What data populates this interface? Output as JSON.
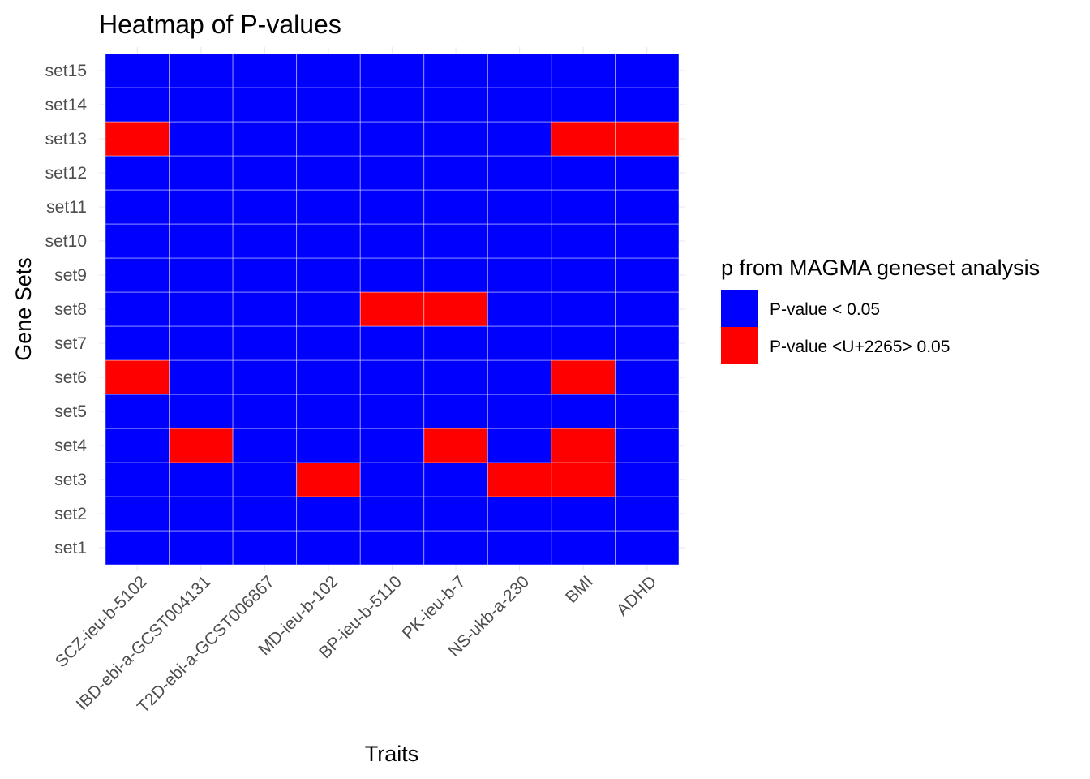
{
  "chart_data": {
    "type": "heatmap",
    "title": "Heatmap of P-values",
    "xlabel": "Traits",
    "ylabel": "Gene Sets",
    "x_categories": [
      "SCZ-ieu-b-5102",
      "IBD-ebi-a-GCST004131",
      "T2D-ebi-a-GCST006867",
      "MD-ieu-b-102",
      "BP-ieu-b-5110",
      "PK-ieu-b-7",
      "NS-ukb-a-230",
      "BMI",
      "ADHD"
    ],
    "y_categories": [
      "set1",
      "set2",
      "set3",
      "set4",
      "set5",
      "set6",
      "set7",
      "set8",
      "set9",
      "set10",
      "set11",
      "set12",
      "set13",
      "set14",
      "set15"
    ],
    "legend": {
      "title": "p from MAGMA geneset analysis",
      "position": "right",
      "entries": [
        {
          "label": "P-value < 0.05",
          "color": "#0000ff"
        },
        {
          "label": "P-value <U+2265> 0.05",
          "color": "#ff0000"
        }
      ]
    },
    "cell_colors": [
      "#0000ff",
      "#ff0000"
    ],
    "grid_line_color": "#ebebeb",
    "significant_encoding": "1 = P-value < 0.05, 0 = P-value <U+2265> 0.05",
    "values": [
      [
        1,
        1,
        1,
        1,
        1,
        1,
        1,
        1,
        1
      ],
      [
        1,
        1,
        1,
        1,
        1,
        1,
        1,
        1,
        1
      ],
      [
        1,
        1,
        1,
        0,
        1,
        1,
        0,
        0,
        1
      ],
      [
        1,
        0,
        1,
        1,
        1,
        0,
        1,
        0,
        1
      ],
      [
        1,
        1,
        1,
        1,
        1,
        1,
        1,
        1,
        1
      ],
      [
        0,
        1,
        1,
        1,
        1,
        1,
        1,
        0,
        1
      ],
      [
        1,
        1,
        1,
        1,
        1,
        1,
        1,
        1,
        1
      ],
      [
        1,
        1,
        1,
        1,
        0,
        0,
        1,
        1,
        1
      ],
      [
        1,
        1,
        1,
        1,
        1,
        1,
        1,
        1,
        1
      ],
      [
        1,
        1,
        1,
        1,
        1,
        1,
        1,
        1,
        1
      ],
      [
        1,
        1,
        1,
        1,
        1,
        1,
        1,
        1,
        1
      ],
      [
        1,
        1,
        1,
        1,
        1,
        1,
        1,
        1,
        1
      ],
      [
        0,
        1,
        1,
        1,
        1,
        1,
        1,
        0,
        0
      ],
      [
        1,
        1,
        1,
        1,
        1,
        1,
        1,
        1,
        1
      ],
      [
        1,
        1,
        1,
        1,
        1,
        1,
        1,
        1,
        1
      ]
    ]
  }
}
